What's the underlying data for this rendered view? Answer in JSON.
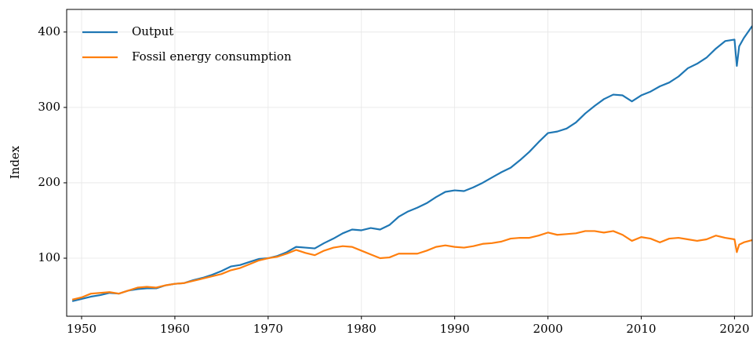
{
  "chart_data": {
    "type": "line",
    "ylabel": "Index",
    "x": [
      1949,
      1950,
      1951,
      1952,
      1953,
      1954,
      1955,
      1956,
      1957,
      1958,
      1959,
      1960,
      1961,
      1962,
      1963,
      1964,
      1965,
      1966,
      1967,
      1968,
      1969,
      1970,
      1971,
      1972,
      1973,
      1974,
      1975,
      1976,
      1977,
      1978,
      1979,
      1980,
      1981,
      1982,
      1983,
      1984,
      1985,
      1986,
      1987,
      1988,
      1989,
      1990,
      1991,
      1992,
      1993,
      1994,
      1995,
      1996,
      1997,
      1998,
      1999,
      2000,
      2001,
      2002,
      2003,
      2004,
      2005,
      2006,
      2007,
      2008,
      2009,
      2010,
      2011,
      2012,
      2013,
      2014,
      2015,
      2016,
      2017,
      2018,
      2019,
      2020,
      2020.25,
      2020.5,
      2021,
      2021.9
    ],
    "series": [
      {
        "name": "Output",
        "color": "#1f77b4",
        "values": [
          43,
          46,
          49,
          51,
          54,
          53,
          57,
          59,
          60,
          60,
          64,
          66,
          67,
          71,
          74,
          78,
          83,
          89,
          91,
          95,
          99,
          100,
          103,
          108,
          115,
          114,
          113,
          120,
          126,
          133,
          138,
          137,
          140,
          138,
          144,
          155,
          162,
          167,
          173,
          181,
          188,
          190,
          189,
          194,
          200,
          207,
          214,
          220,
          230,
          241,
          254,
          266,
          268,
          272,
          280,
          292,
          302,
          311,
          317,
          316,
          308,
          316,
          321,
          328,
          333,
          341,
          352,
          358,
          366,
          378,
          388,
          390,
          355,
          381,
          392,
          408
        ]
      },
      {
        "name": "Fossil energy consumption",
        "color": "#ff7f0e",
        "values": [
          45,
          48,
          53,
          54,
          55,
          53,
          57,
          61,
          62,
          61,
          64,
          66,
          67,
          70,
          73,
          76,
          79,
          84,
          87,
          92,
          97,
          100,
          102,
          106,
          111,
          107,
          104,
          110,
          114,
          116,
          115,
          110,
          105,
          100,
          101,
          106,
          106,
          106,
          110,
          115,
          117,
          115,
          114,
          116,
          119,
          120,
          122,
          126,
          127,
          127,
          130,
          134,
          131,
          132,
          133,
          136,
          136,
          134,
          136,
          131,
          123,
          128,
          126,
          121,
          126,
          127,
          125,
          123,
          125,
          130,
          127,
          125,
          108,
          118,
          121,
          124
        ]
      }
    ],
    "xlim": [
      1948.4,
      2021.9
    ],
    "ylim": [
      23,
      430
    ],
    "xticks": [
      1950,
      1960,
      1970,
      1980,
      1990,
      2000,
      2010,
      2020
    ],
    "yticks": [
      100,
      200,
      300,
      400
    ],
    "grid": true,
    "legend": "upper left"
  }
}
